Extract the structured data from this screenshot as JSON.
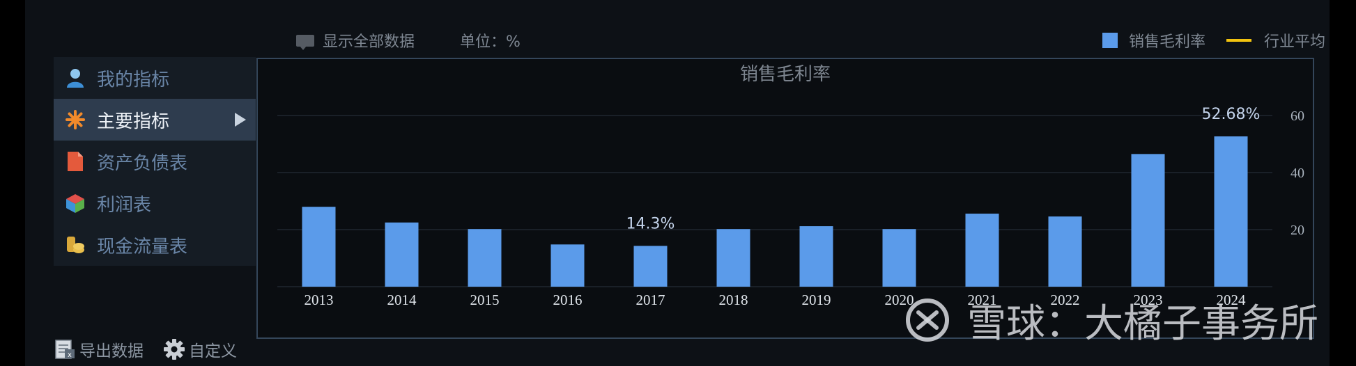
{
  "toolbar": {
    "show_all_label": "显示全部数据",
    "unit_label": "单位：%",
    "legend_main": "销售毛利率",
    "legend_avg": "行业平均"
  },
  "sidebar": {
    "items": [
      {
        "label": "我的指标",
        "icon": "user-icon"
      },
      {
        "label": "主要指标",
        "icon": "star-icon"
      },
      {
        "label": "资产负债表",
        "icon": "document-icon"
      },
      {
        "label": "利润表",
        "icon": "cube-icon"
      },
      {
        "label": "现金流量表",
        "icon": "coins-icon"
      }
    ],
    "active_index": 1
  },
  "footer": {
    "export_label": "导出数据",
    "customize_label": "自定义"
  },
  "watermark": {
    "text": "雪球：大橘子事务所",
    "icon": "snowball-logo-icon"
  },
  "colors": {
    "bar": "#5b9bea",
    "avg_line": "#f2c30f",
    "active_item": "#2e3c4e"
  },
  "chart_data": {
    "type": "bar",
    "title": "销售毛利率",
    "categories": [
      "2013",
      "2014",
      "2015",
      "2016",
      "2017",
      "2018",
      "2019",
      "2020",
      "2021",
      "2022",
      "2023",
      "2024"
    ],
    "series": [
      {
        "name": "销售毛利率",
        "values": [
          28.0,
          22.5,
          20.2,
          14.8,
          14.3,
          20.2,
          21.2,
          20.2,
          25.6,
          24.6,
          46.5,
          52.68
        ]
      }
    ],
    "data_labels": [
      {
        "category": "2017",
        "text": "14.3%"
      },
      {
        "category": "2024",
        "text": "52.68%"
      }
    ],
    "y_ticks": [
      20,
      40,
      60
    ],
    "ylim": [
      0,
      60
    ],
    "y_axis_side": "right",
    "grid": true,
    "legend_position": "top-right"
  }
}
